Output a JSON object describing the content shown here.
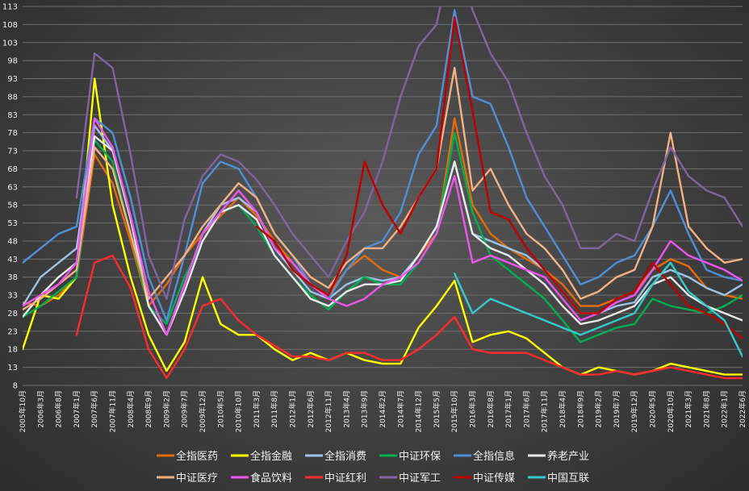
{
  "chart_data": {
    "type": "line",
    "title": "",
    "xlabel": "",
    "ylabel": "",
    "ylim": [
      8,
      113
    ],
    "y_ticks": [
      8,
      13,
      18,
      23,
      28,
      33,
      38,
      43,
      48,
      53,
      58,
      63,
      68,
      73,
      78,
      83,
      88,
      93,
      98,
      103,
      108,
      113
    ],
    "grid": "horizontal",
    "legend_position": "bottom",
    "x_tick_labels": [
      "2005年10月",
      "2006年3月",
      "2006年8月",
      "2007年1月",
      "2007年6月",
      "2007年11月",
      "2008年4月",
      "2008年9月",
      "2009年2月",
      "2009年7月",
      "2009年12月",
      "2010年5月",
      "2010年10月",
      "2011年3月",
      "2011年8月",
      "2012年1月",
      "2012年6月",
      "2012年11月",
      "2013年4月",
      "2013年9月",
      "2014年2月",
      "2014年7月",
      "2014年12月",
      "2015年5月",
      "2015年10月",
      "2016年3月",
      "2016年8月",
      "2017年1月",
      "2017年6月",
      "2017年11月",
      "2018年4月",
      "2018年9月",
      "2019年2月",
      "2019年7月",
      "2019年12月",
      "2020年5月",
      "2020年10月",
      "2021年3月",
      "2021年8月",
      "2022年1月",
      "2022年6月"
    ],
    "series": [
      {
        "name": "全指医药",
        "color": "#e36c0a",
        "values": [
          31,
          30,
          33,
          38,
          72,
          64,
          48,
          30,
          36,
          44,
          50,
          55,
          60,
          55,
          48,
          42,
          36,
          33,
          40,
          44,
          40,
          38,
          44,
          50,
          82,
          58,
          50,
          46,
          43,
          40,
          36,
          30,
          30,
          32,
          34,
          40,
          43,
          41,
          35,
          33,
          32
        ]
      },
      {
        "name": "全指金融",
        "color": "#ffff00",
        "values": [
          18,
          33,
          32,
          38,
          93,
          58,
          38,
          22,
          12,
          20,
          38,
          25,
          22,
          22,
          18,
          15,
          17,
          15,
          17,
          15,
          14,
          14,
          24,
          30,
          37,
          20,
          22,
          23,
          21,
          17,
          13,
          11,
          13,
          12,
          11,
          12,
          14,
          13,
          12,
          11,
          11
        ]
      },
      {
        "name": "全指消费",
        "color": "#9dc3e6",
        "values": [
          30,
          38,
          42,
          46,
          80,
          73,
          55,
          30,
          22,
          36,
          50,
          58,
          60,
          56,
          46,
          40,
          34,
          32,
          36,
          38,
          37,
          38,
          44,
          52,
          70,
          50,
          48,
          46,
          44,
          40,
          34,
          28,
          28,
          30,
          31,
          38,
          40,
          38,
          35,
          33,
          36
        ]
      },
      {
        "name": "中证环保",
        "color": "#00b050",
        "values": [
          27,
          30,
          34,
          38,
          76,
          70,
          50,
          30,
          25,
          38,
          48,
          56,
          58,
          52,
          44,
          38,
          33,
          29,
          34,
          38,
          36,
          36,
          42,
          50,
          78,
          56,
          44,
          40,
          36,
          32,
          26,
          20,
          22,
          24,
          25,
          32,
          30,
          29,
          28,
          30,
          33
        ]
      },
      {
        "name": "全指信息",
        "color": "#4f8fd8",
        "values": [
          42,
          46,
          50,
          52,
          82,
          78,
          60,
          38,
          26,
          44,
          64,
          70,
          68,
          60,
          50,
          44,
          36,
          32,
          40,
          46,
          48,
          56,
          72,
          80,
          112,
          88,
          86,
          74,
          60,
          52,
          44,
          36,
          38,
          42,
          44,
          52,
          62,
          50,
          40,
          38,
          37
        ]
      },
      {
        "name": "养老产业",
        "color": "#e8e8e8",
        "values": [
          27,
          33,
          38,
          42,
          77,
          73,
          54,
          30,
          22,
          34,
          48,
          56,
          58,
          54,
          44,
          38,
          32,
          30,
          34,
          36,
          36,
          37,
          44,
          52,
          70,
          50,
          46,
          44,
          40,
          36,
          30,
          25,
          26,
          28,
          30,
          36,
          38,
          33,
          30,
          28,
          26
        ]
      },
      {
        "name": "中证医疗",
        "color": "#f4b183",
        "values": [
          29,
          32,
          36,
          40,
          74,
          68,
          50,
          32,
          38,
          44,
          52,
          58,
          64,
          60,
          50,
          44,
          38,
          35,
          42,
          46,
          46,
          52,
          60,
          68,
          96,
          62,
          68,
          58,
          50,
          46,
          40,
          32,
          34,
          38,
          40,
          52,
          78,
          52,
          46,
          42,
          43
        ]
      },
      {
        "name": "食品饮料",
        "color": "#ee55ee",
        "values": [
          30,
          33,
          36,
          42,
          82,
          74,
          55,
          34,
          22,
          36,
          50,
          56,
          62,
          56,
          46,
          42,
          36,
          32,
          30,
          32,
          36,
          38,
          42,
          50,
          66,
          42,
          44,
          42,
          40,
          38,
          32,
          26,
          28,
          31,
          33,
          40,
          48,
          44,
          42,
          40,
          37
        ]
      },
      {
        "name": "中证红利",
        "color": "#ff2a2a",
        "values": [
          null,
          null,
          null,
          22,
          42,
          44,
          35,
          18,
          10,
          18,
          30,
          32,
          26,
          22,
          19,
          16,
          16,
          15,
          17,
          17,
          15,
          15,
          18,
          22,
          27,
          18,
          17,
          17,
          17,
          15,
          13,
          11,
          11,
          12,
          11,
          12,
          13,
          12,
          11,
          10,
          10
        ]
      },
      {
        "name": "中证军工",
        "color": "#8064a2",
        "values": [
          null,
          null,
          null,
          60,
          100,
          96,
          72,
          44,
          32,
          54,
          66,
          72,
          70,
          65,
          58,
          50,
          44,
          38,
          48,
          56,
          70,
          88,
          102,
          108,
          132,
          112,
          100,
          92,
          78,
          66,
          58,
          46,
          46,
          50,
          48,
          62,
          74,
          66,
          62,
          60,
          52
        ]
      },
      {
        "name": "中证传媒",
        "color": "#c00000",
        "values": [
          null,
          null,
          null,
          null,
          null,
          null,
          null,
          null,
          null,
          null,
          null,
          null,
          null,
          52,
          48,
          40,
          36,
          33,
          44,
          70,
          58,
          50,
          60,
          68,
          110,
          84,
          56,
          54,
          46,
          40,
          34,
          28,
          28,
          32,
          34,
          42,
          36,
          30,
          28,
          25,
          21
        ]
      },
      {
        "name": "中国互联",
        "color": "#33cccc",
        "values": [
          null,
          null,
          null,
          null,
          null,
          null,
          null,
          null,
          null,
          null,
          null,
          null,
          null,
          null,
          null,
          null,
          null,
          null,
          null,
          null,
          null,
          null,
          null,
          null,
          39,
          28,
          32,
          30,
          28,
          26,
          24,
          22,
          24,
          26,
          28,
          36,
          42,
          34,
          30,
          26,
          16
        ]
      }
    ]
  }
}
